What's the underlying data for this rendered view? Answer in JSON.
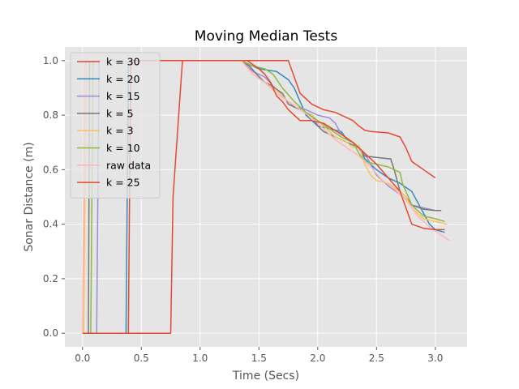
{
  "chart_data": {
    "type": "line",
    "title": "Moving Median Tests",
    "xlabel": "Time (Secs)",
    "ylabel": "Sonar Distance (m)",
    "xlim": [
      -0.15,
      3.27
    ],
    "ylim": [
      -0.05,
      1.05
    ],
    "xticks": [
      "0.0",
      "0.5",
      "1.0",
      "1.5",
      "2.0",
      "2.5",
      "3.0"
    ],
    "yticks": [
      "0.0",
      "0.2",
      "0.4",
      "0.6",
      "0.8",
      "1.0"
    ],
    "grid": true,
    "legend": "top-left",
    "series": [
      {
        "name": "k = 30",
        "color": "#E24A33",
        "x": [
          0,
          0.75,
          0.77,
          0.85,
          1.0,
          1.3,
          1.5,
          1.75,
          1.85,
          1.95,
          2.05,
          2.15,
          2.2,
          2.3,
          2.35,
          2.4,
          2.45,
          2.6,
          2.7,
          2.75,
          2.8,
          2.9,
          3.0
        ],
        "y": [
          0,
          0,
          0.5,
          1.0,
          1.0,
          1.0,
          1.0,
          1.0,
          0.88,
          0.84,
          0.82,
          0.81,
          0.8,
          0.78,
          0.76,
          0.745,
          0.74,
          0.735,
          0.72,
          0.68,
          0.63,
          0.6,
          0.57
        ]
      },
      {
        "name": "k = 20",
        "color": "#348ABD",
        "x": [
          0,
          0.37,
          0.39,
          0.5,
          1.0,
          1.35,
          1.5,
          1.65,
          1.75,
          1.8,
          1.85,
          1.9,
          1.95,
          2.0,
          2.1,
          2.2,
          2.25,
          2.3,
          2.35,
          2.4,
          2.5,
          2.6,
          2.65,
          2.7,
          2.8,
          2.85,
          2.95,
          3.0,
          3.08
        ],
        "y": [
          0,
          0,
          1.0,
          1.0,
          1.0,
          1.0,
          0.97,
          0.96,
          0.93,
          0.9,
          0.85,
          0.8,
          0.78,
          0.76,
          0.75,
          0.74,
          0.71,
          0.7,
          0.68,
          0.64,
          0.6,
          0.57,
          0.56,
          0.55,
          0.52,
          0.48,
          0.4,
          0.38,
          0.37
        ]
      },
      {
        "name": "k = 15",
        "color": "#988ED5",
        "x": [
          0,
          0.12,
          0.14,
          0.5,
          1.0,
          1.35,
          1.45,
          1.55,
          1.7,
          1.8,
          1.9,
          2.0,
          2.1,
          2.15,
          2.2,
          2.3,
          2.4,
          2.5,
          2.6,
          2.7,
          2.8,
          2.9,
          3.0,
          3.05
        ],
        "y": [
          0,
          0,
          1.0,
          1.0,
          1.0,
          1.0,
          0.96,
          0.94,
          0.87,
          0.83,
          0.82,
          0.8,
          0.79,
          0.77,
          0.73,
          0.7,
          0.66,
          0.58,
          0.54,
          0.51,
          0.47,
          0.46,
          0.45,
          0.45
        ]
      },
      {
        "name": "k = 5",
        "color": "#777777",
        "x": [
          0,
          0.05,
          0.06,
          0.5,
          1.0,
          1.35,
          1.42,
          1.48,
          1.55,
          1.6,
          1.7,
          1.75,
          1.85,
          1.95,
          2.0,
          2.05,
          2.15,
          2.25,
          2.35,
          2.4,
          2.5,
          2.6,
          2.62,
          2.65,
          2.7,
          2.75,
          2.8,
          2.9,
          3.0,
          3.05
        ],
        "y": [
          0,
          0,
          1.0,
          1.0,
          1.0,
          1.0,
          0.98,
          0.95,
          0.92,
          0.91,
          0.88,
          0.84,
          0.82,
          0.8,
          0.76,
          0.74,
          0.72,
          0.7,
          0.68,
          0.65,
          0.645,
          0.64,
          0.64,
          0.6,
          0.52,
          0.5,
          0.47,
          0.455,
          0.45,
          0.45
        ]
      },
      {
        "name": "k = 3",
        "color": "#FBC15E",
        "x": [
          0,
          0.01,
          0.03,
          0.5,
          1.0,
          1.35,
          1.45,
          1.55,
          1.65,
          1.75,
          1.85,
          1.95,
          2.05,
          2.15,
          2.25,
          2.3,
          2.35,
          2.4,
          2.45,
          2.5,
          2.6,
          2.7,
          2.75,
          2.8,
          2.9,
          3.0,
          3.1
        ],
        "y": [
          0,
          0,
          1.0,
          1.0,
          1.0,
          1.0,
          0.95,
          0.92,
          0.89,
          0.85,
          0.82,
          0.8,
          0.76,
          0.72,
          0.7,
          0.68,
          0.69,
          0.62,
          0.58,
          0.56,
          0.55,
          0.52,
          0.5,
          0.46,
          0.42,
          0.41,
          0.4
        ]
      },
      {
        "name": "k = 10",
        "color": "#8EBA42",
        "x": [
          0,
          0.07,
          0.09,
          0.5,
          1.0,
          1.35,
          1.45,
          1.55,
          1.62,
          1.7,
          1.8,
          1.9,
          2.0,
          2.1,
          2.2,
          2.3,
          2.35,
          2.4,
          2.5,
          2.6,
          2.65,
          2.7,
          2.72,
          2.8,
          2.9,
          3.0,
          3.08
        ],
        "y": [
          0,
          0,
          1.0,
          1.0,
          1.0,
          1.0,
          0.98,
          0.97,
          0.95,
          0.9,
          0.85,
          0.81,
          0.78,
          0.75,
          0.72,
          0.7,
          0.66,
          0.63,
          0.62,
          0.61,
          0.6,
          0.59,
          0.55,
          0.47,
          0.43,
          0.42,
          0.41
        ]
      },
      {
        "name": "raw data",
        "color": "#FFB5B8",
        "x": [
          0,
          0.02,
          0.5,
          1.0,
          1.35,
          1.45,
          1.55,
          1.65,
          1.75,
          1.85,
          1.95,
          2.05,
          2.15,
          2.25,
          2.35,
          2.45,
          2.55,
          2.65,
          2.75,
          2.85,
          2.95,
          3.05,
          3.12
        ],
        "y": [
          0,
          1.0,
          1.0,
          1.0,
          1.0,
          0.95,
          0.92,
          0.88,
          0.85,
          0.82,
          0.79,
          0.75,
          0.71,
          0.68,
          0.65,
          0.61,
          0.56,
          0.53,
          0.49,
          0.43,
          0.39,
          0.36,
          0.34
        ]
      },
      {
        "name": "k = 25",
        "color": "#E24A33",
        "x": [
          0,
          0.39,
          0.41,
          0.5,
          1.0,
          1.4,
          1.5,
          1.55,
          1.6,
          1.65,
          1.7,
          1.75,
          1.85,
          1.95,
          2.05,
          2.2,
          2.3,
          2.4,
          2.5,
          2.6,
          2.7,
          2.75,
          2.8,
          2.9,
          3.0,
          3.08
        ],
        "y": [
          0,
          0,
          1.0,
          1.0,
          1.0,
          1.0,
          0.97,
          0.95,
          0.92,
          0.87,
          0.85,
          0.82,
          0.78,
          0.78,
          0.77,
          0.73,
          0.7,
          0.66,
          0.62,
          0.57,
          0.52,
          0.46,
          0.4,
          0.385,
          0.38,
          0.38
        ]
      }
    ]
  }
}
